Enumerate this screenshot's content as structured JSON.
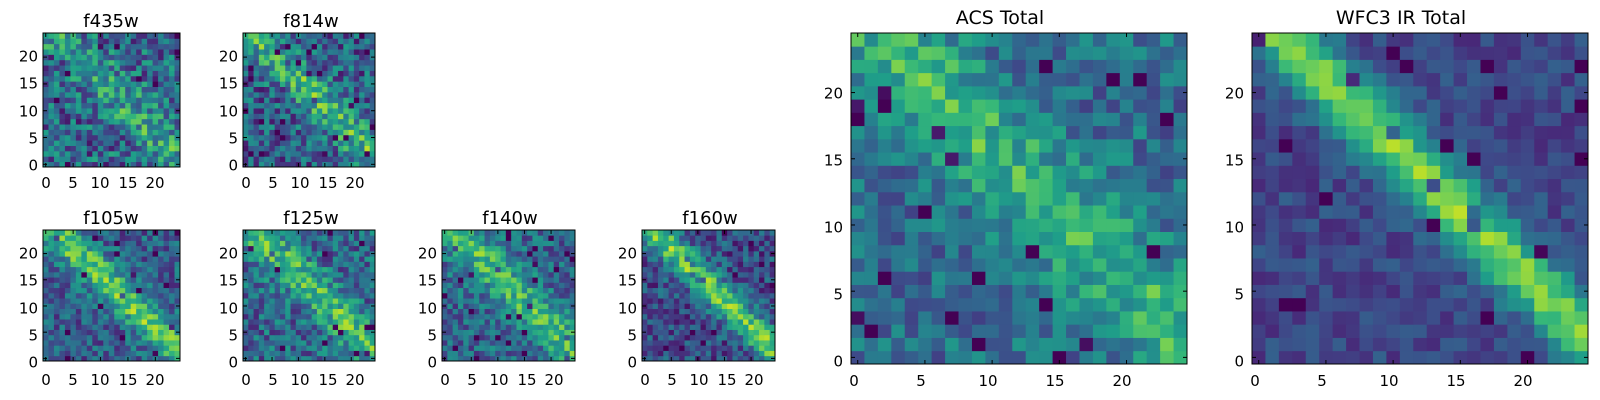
{
  "figure": {
    "colormap": "viridis",
    "panels": [
      {
        "key": "f435w",
        "title": "f435w",
        "xticks": [
          "0",
          "5",
          "10",
          "15",
          "20"
        ],
        "yticks": [
          "0",
          "5",
          "10",
          "15",
          "20"
        ]
      },
      {
        "key": "f814w",
        "title": "f814w",
        "xticks": [
          "0",
          "5",
          "10",
          "15",
          "20"
        ],
        "yticks": [
          "0",
          "5",
          "10",
          "15",
          "20"
        ]
      },
      {
        "key": "f105w",
        "title": "f105w",
        "xticks": [
          "0",
          "5",
          "10",
          "15",
          "20"
        ],
        "yticks": [
          "0",
          "5",
          "10",
          "15",
          "20"
        ]
      },
      {
        "key": "f125w",
        "title": "f125w",
        "xticks": [
          "0",
          "5",
          "10",
          "15",
          "20"
        ],
        "yticks": [
          "0",
          "5",
          "10",
          "15",
          "20"
        ]
      },
      {
        "key": "f140w",
        "title": "f140w",
        "xticks": [
          "0",
          "5",
          "10",
          "15",
          "20"
        ],
        "yticks": [
          "0",
          "5",
          "10",
          "15",
          "20"
        ]
      },
      {
        "key": "f160w",
        "title": "f160w",
        "xticks": [
          "0",
          "5",
          "10",
          "15",
          "20"
        ],
        "yticks": [
          "0",
          "5",
          "10",
          "15",
          "20"
        ]
      },
      {
        "key": "acs",
        "title": "ACS Total",
        "xticks": [
          "0",
          "5",
          "10",
          "15",
          "20"
        ],
        "yticks": [
          "0",
          "5",
          "10",
          "15",
          "20"
        ]
      },
      {
        "key": "wfc3",
        "title": "WFC3 IR Total",
        "xticks": [
          "0",
          "5",
          "10",
          "15",
          "20"
        ],
        "yticks": [
          "0",
          "5",
          "10",
          "15",
          "20"
        ]
      }
    ]
  },
  "chart_data": [
    {
      "type": "heatmap",
      "title": "f435w",
      "grid_size": [
        25,
        25
      ],
      "xlim": [
        -0.5,
        24.5
      ],
      "ylim": [
        -0.5,
        24.5
      ],
      "xticks": [
        0,
        5,
        10,
        15,
        20
      ],
      "yticks": [
        0,
        5,
        10,
        15,
        20
      ],
      "colormap": "viridis",
      "structure": {
        "kind": "noisy",
        "noise": 0.55,
        "base": 0.55,
        "streak_amp": 0.25,
        "streak_width": 2.5,
        "seed": 11
      }
    },
    {
      "type": "heatmap",
      "title": "f814w",
      "grid_size": [
        25,
        25
      ],
      "xlim": [
        -0.5,
        24.5
      ],
      "ylim": [
        -0.5,
        24.5
      ],
      "xticks": [
        0,
        5,
        10,
        15,
        20
      ],
      "yticks": [
        0,
        5,
        10,
        15,
        20
      ],
      "colormap": "viridis",
      "structure": {
        "kind": "noisy",
        "noise": 0.5,
        "base": 0.5,
        "streak_amp": 0.35,
        "streak_width": 2.5,
        "seed": 23
      }
    },
    {
      "type": "heatmap",
      "title": "f105w",
      "grid_size": [
        25,
        25
      ],
      "xlim": [
        -0.5,
        24.5
      ],
      "ylim": [
        -0.5,
        24.5
      ],
      "xticks": [
        0,
        5,
        10,
        15,
        20
      ],
      "yticks": [
        0,
        5,
        10,
        15,
        20
      ],
      "colormap": "viridis",
      "structure": {
        "kind": "noisy",
        "noise": 0.4,
        "base": 0.5,
        "streak_amp": 0.45,
        "streak_width": 2.2,
        "seed": 37
      }
    },
    {
      "type": "heatmap",
      "title": "f125w",
      "grid_size": [
        25,
        25
      ],
      "xlim": [
        -0.5,
        24.5
      ],
      "ylim": [
        -0.5,
        24.5
      ],
      "xticks": [
        0,
        5,
        10,
        15,
        20
      ],
      "yticks": [
        0,
        5,
        10,
        15,
        20
      ],
      "colormap": "viridis",
      "structure": {
        "kind": "noisy",
        "noise": 0.45,
        "base": 0.55,
        "streak_amp": 0.35,
        "streak_width": 2.5,
        "seed": 41
      }
    },
    {
      "type": "heatmap",
      "title": "f140w",
      "grid_size": [
        25,
        25
      ],
      "xlim": [
        -0.5,
        24.5
      ],
      "ylim": [
        -0.5,
        24.5
      ],
      "xticks": [
        0,
        5,
        10,
        15,
        20
      ],
      "yticks": [
        0,
        5,
        10,
        15,
        20
      ],
      "colormap": "viridis",
      "structure": {
        "kind": "noisy",
        "noise": 0.4,
        "base": 0.55,
        "streak_amp": 0.35,
        "streak_width": 2.5,
        "seed": 53
      }
    },
    {
      "type": "heatmap",
      "title": "f160w",
      "grid_size": [
        25,
        25
      ],
      "xlim": [
        -0.5,
        24.5
      ],
      "ylim": [
        -0.5,
        24.5
      ],
      "xticks": [
        0,
        5,
        10,
        15,
        20
      ],
      "yticks": [
        0,
        5,
        10,
        15,
        20
      ],
      "colormap": "viridis",
      "structure": {
        "kind": "noisy",
        "noise": 0.4,
        "base": 0.4,
        "streak_amp": 0.5,
        "streak_width": 2.0,
        "seed": 67
      }
    },
    {
      "type": "heatmap",
      "title": "ACS Total",
      "grid_size": [
        25,
        25
      ],
      "xlim": [
        -0.5,
        24.5
      ],
      "ylim": [
        -0.5,
        24.5
      ],
      "xticks": [
        0,
        5,
        10,
        15,
        20
      ],
      "yticks": [
        0,
        5,
        10,
        15,
        20
      ],
      "colormap": "viridis",
      "structure": {
        "kind": "noisy",
        "noise": 0.35,
        "base": 0.6,
        "streak_amp": 0.3,
        "streak_width": 2.5,
        "seed": 79
      }
    },
    {
      "type": "heatmap",
      "title": "WFC3 IR Total",
      "grid_size": [
        25,
        25
      ],
      "xlim": [
        -0.5,
        24.5
      ],
      "ylim": [
        -0.5,
        24.5
      ],
      "xticks": [
        0,
        5,
        10,
        15,
        20
      ],
      "yticks": [
        0,
        5,
        10,
        15,
        20
      ],
      "colormap": "viridis",
      "structure": {
        "kind": "noisy",
        "noise": 0.2,
        "base": 0.35,
        "streak_amp": 0.6,
        "streak_width": 1.6,
        "seed": 97
      }
    }
  ]
}
